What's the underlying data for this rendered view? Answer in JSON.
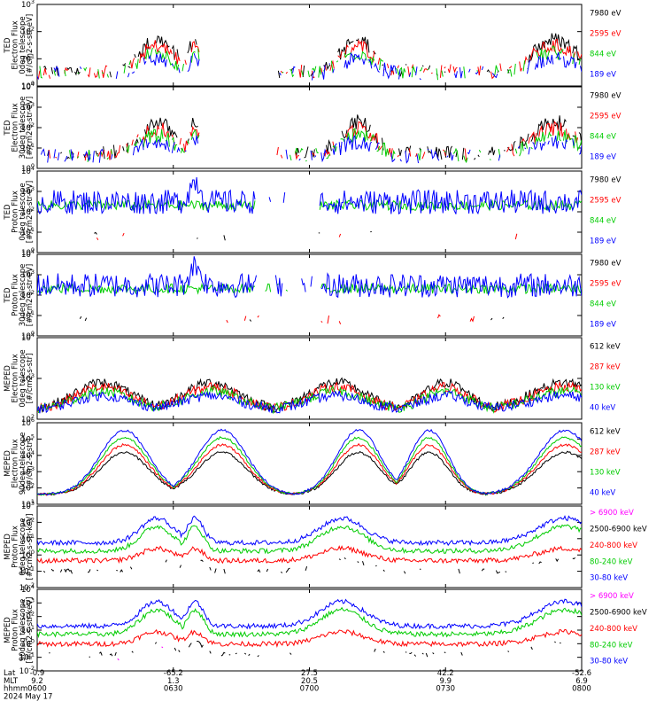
{
  "chart_data": {
    "type": "line",
    "x_axis": {
      "rows": [
        {
          "label": "Lat",
          "values": [
            "-0.9",
            "-65.2",
            "27.5",
            "42.2",
            "-52.6"
          ]
        },
        {
          "label": "MLT",
          "values": [
            "9.2",
            "1.3",
            "20.5",
            "9.9",
            "6.9"
          ]
        },
        {
          "label": "hhmm",
          "values": [
            "0600",
            "0630",
            "0700",
            "0730",
            "0800"
          ]
        }
      ],
      "date": "2024 May 17",
      "time_range": [
        "06:00",
        "08:00"
      ]
    },
    "colors": {
      "c1": "#000000",
      "c2": "#ff0000",
      "c3": "#00cc00",
      "c4": "#0000ff",
      "c5": "#ff00ff"
    },
    "panels": [
      {
        "ylabel": [
          "TED",
          "Electron Flux",
          "0deg telescope",
          "[#/cm2-s-str-eV]"
        ],
        "ytick_labels": [
          "10^0",
          "10^1",
          "10^2",
          "10^3"
        ],
        "legend": [
          {
            "text": "7980 eV",
            "color": "#000000"
          },
          {
            "text": "2595 eV",
            "color": "#ff0000"
          },
          {
            "text": "844 eV",
            "color": "#00cc00"
          },
          {
            "text": "189 eV",
            "color": "#0000ff"
          }
        ]
      },
      {
        "ylabel": [
          "TED",
          "Electron Flux",
          "30deg telescope",
          "[#/cm2-s-str-eV]"
        ],
        "ytick_labels": [
          "10^0",
          "10^1",
          "10^2",
          "10^3",
          "10^4"
        ],
        "legend": [
          {
            "text": "7980 eV",
            "color": "#000000"
          },
          {
            "text": "2595 eV",
            "color": "#ff0000"
          },
          {
            "text": "844 eV",
            "color": "#00cc00"
          },
          {
            "text": "189 eV",
            "color": "#0000ff"
          }
        ]
      },
      {
        "ylabel": [
          "TED",
          "Proton Flux",
          "0deg telescope",
          "[#/cm2-s-str-eV]"
        ],
        "ytick_labels": [
          "10^0",
          "10^1",
          "10^2",
          "10^3",
          "10^4"
        ],
        "legend": [
          {
            "text": "7980 eV",
            "color": "#000000"
          },
          {
            "text": "2595 eV",
            "color": "#ff0000"
          },
          {
            "text": "844 eV",
            "color": "#00cc00"
          },
          {
            "text": "189 eV",
            "color": "#0000ff"
          }
        ]
      },
      {
        "ylabel": [
          "TED",
          "Proton Flux",
          "30deg telescope",
          "[#/cm2-s-str-eV]"
        ],
        "ytick_labels": [
          "10^0",
          "10^1",
          "10^2",
          "10^3",
          "10^4"
        ],
        "legend": [
          {
            "text": "7980 eV",
            "color": "#000000"
          },
          {
            "text": "2595 eV",
            "color": "#ff0000"
          },
          {
            "text": "844 eV",
            "color": "#00cc00"
          },
          {
            "text": "189 eV",
            "color": "#0000ff"
          }
        ]
      },
      {
        "ylabel": [
          "MEPED",
          "Electron Flux",
          "0deg telescope",
          "[#/cm2-s-str]"
        ],
        "ytick_labels": [
          "10^2",
          "10^3",
          "10^4"
        ],
        "legend": [
          {
            "text": "612 keV",
            "color": "#000000"
          },
          {
            "text": "287 keV",
            "color": "#ff0000"
          },
          {
            "text": "130 keV",
            "color": "#00cc00"
          },
          {
            "text": "40 keV",
            "color": "#0000ff"
          }
        ]
      },
      {
        "ylabel": [
          "MEPED",
          "Electron Flux",
          "90deg telescope",
          "[#/cm2-s-str]"
        ],
        "ytick_labels": [
          "10^1",
          "10^2",
          "10^3",
          "10^4",
          "10^5",
          "10^6"
        ],
        "legend": [
          {
            "text": "612 keV",
            "color": "#000000"
          },
          {
            "text": "287 keV",
            "color": "#ff0000"
          },
          {
            "text": "130 keV",
            "color": "#00cc00"
          },
          {
            "text": "40 keV",
            "color": "#0000ff"
          }
        ]
      },
      {
        "ylabel": [
          "MEPED",
          "Proton Flux",
          "0deg telescope",
          "[#/cm2-s-str-keV]"
        ],
        "ytick_labels": [
          "10^-2",
          "10^-1",
          "10^0",
          "10^1",
          "10^2",
          "10^3"
        ],
        "legend": [
          {
            "text": "> 6900 keV",
            "color": "#ff00ff"
          },
          {
            "text": "2500-6900 keV",
            "color": "#000000"
          },
          {
            "text": "240-800 keV",
            "color": "#ff0000"
          },
          {
            "text": "80-240 keV",
            "color": "#00cc00"
          },
          {
            "text": "30-80 keV",
            "color": "#0000ff"
          }
        ]
      },
      {
        "ylabel": [
          "MEPED",
          "Proton Flux",
          "90deg telescope",
          "[#/cm2-s-str-keV]"
        ],
        "ytick_labels": [
          "10^-2",
          "10^-1",
          "10^0",
          "10^1",
          "10^2",
          "10^3",
          "10^4"
        ],
        "legend": [
          {
            "text": "> 6900 keV",
            "color": "#ff00ff"
          },
          {
            "text": "2500-6900 keV",
            "color": "#000000"
          },
          {
            "text": "240-800 keV",
            "color": "#ff0000"
          },
          {
            "text": "80-240 keV",
            "color": "#00cc00"
          },
          {
            "text": "30-80 keV",
            "color": "#0000ff"
          }
        ]
      }
    ]
  }
}
